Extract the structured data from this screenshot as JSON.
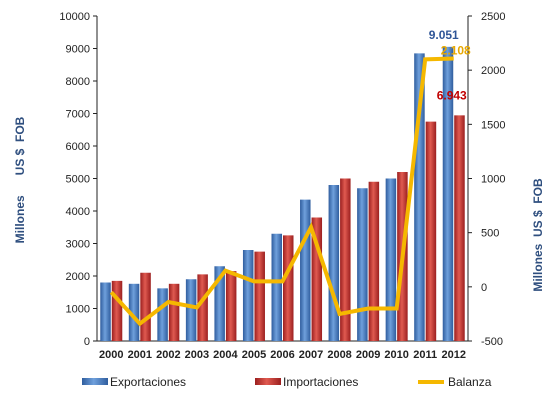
{
  "chart_data": {
    "type": "bar",
    "categories": [
      "2000",
      "2001",
      "2002",
      "2003",
      "2004",
      "2005",
      "2006",
      "2007",
      "2008",
      "2009",
      "2010",
      "2011",
      "2012"
    ],
    "series": [
      {
        "name": "Exportaciones",
        "kind": "bar",
        "axis": "left",
        "color": "#4a7fc1",
        "values": [
          1800,
          1760,
          1620,
          1900,
          2300,
          2800,
          3300,
          4350,
          4800,
          4700,
          5000,
          8850,
          9051
        ]
      },
      {
        "name": "Importaciones",
        "kind": "bar",
        "axis": "left",
        "color": "#c0392b",
        "values": [
          1850,
          2100,
          1760,
          2050,
          2150,
          2750,
          3250,
          3800,
          5000,
          4900,
          5200,
          6750,
          6943
        ]
      },
      {
        "name": "Balanza",
        "kind": "line",
        "axis": "right",
        "color": "#f5b800",
        "values": [
          -50,
          -340,
          -140,
          -190,
          150,
          50,
          50,
          550,
          -250,
          -200,
          -200,
          2100,
          2108
        ]
      }
    ],
    "y_left": {
      "label": "Millones      US $  FOB",
      "lim": [
        0,
        10000
      ],
      "ticks": [
        "0",
        "1000",
        "2000",
        "3000",
        "4000",
        "5000",
        "6000",
        "7000",
        "8000",
        "9000",
        "10000"
      ]
    },
    "y_right": {
      "label": "Millones  US $  FOB",
      "lim": [
        -500,
        2500
      ],
      "ticks": [
        "-500",
        "0",
        "500",
        "1000",
        "1500",
        "2000",
        "2500"
      ]
    },
    "annotations": [
      {
        "text": "9.051",
        "series": "Exportaciones",
        "category": "2012",
        "color": "#2f5597"
      },
      {
        "text": "2.108",
        "series": "Balanza",
        "category": "2012",
        "color": "#e8a800"
      },
      {
        "text": "6.943",
        "series": "Importaciones",
        "category": "2012",
        "color": "#c00000"
      }
    ],
    "legend": {
      "placement": "bottom",
      "items": [
        "Exportaciones",
        "Importaciones",
        "Balanza"
      ]
    },
    "grid": false
  }
}
